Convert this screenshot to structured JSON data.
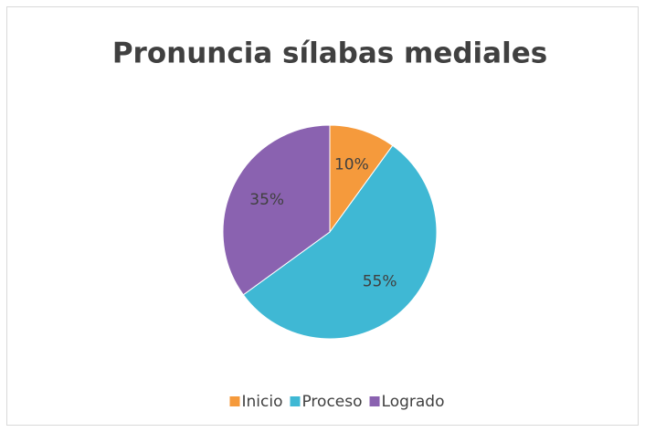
{
  "chart_data": {
    "type": "pie",
    "title": "Pronuncia sílabas mediales",
    "categories": [
      "Inicio",
      "Proceso",
      "Logrado"
    ],
    "values": [
      10,
      55,
      35
    ],
    "value_labels": [
      "10%",
      "55%",
      "35%"
    ],
    "colors": [
      "#f59a3c",
      "#3fb8d4",
      "#8a62b0"
    ],
    "legend": "bottom"
  }
}
